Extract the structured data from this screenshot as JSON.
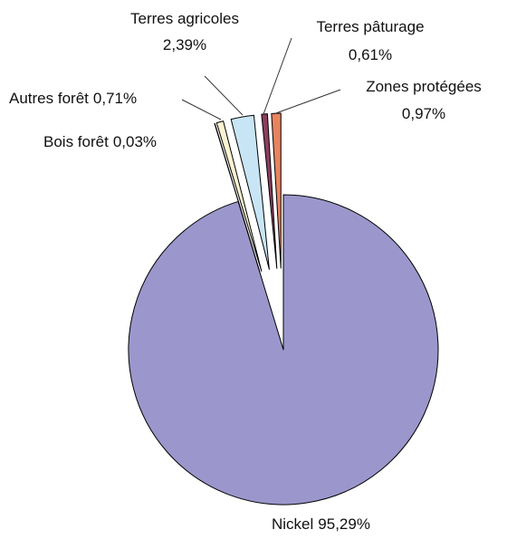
{
  "chart_data": {
    "type": "pie",
    "categories": [
      "Nickel",
      "Bois forêt",
      "Autres forêt",
      "Terres agricoles",
      "Terres pâturage",
      "Zones protégées"
    ],
    "values": [
      95.29,
      0.03,
      0.71,
      2.39,
      0.61,
      0.97
    ],
    "value_labels": [
      "95,29%",
      "0,03%",
      "0,71%",
      "2,39%",
      "0,61%",
      "0,97%"
    ],
    "colors": [
      "#9b97cc",
      "#f6f1d6",
      "#fbf3d2",
      "#c8e5f5",
      "#8c3d5e",
      "#e8835f"
    ]
  }
}
